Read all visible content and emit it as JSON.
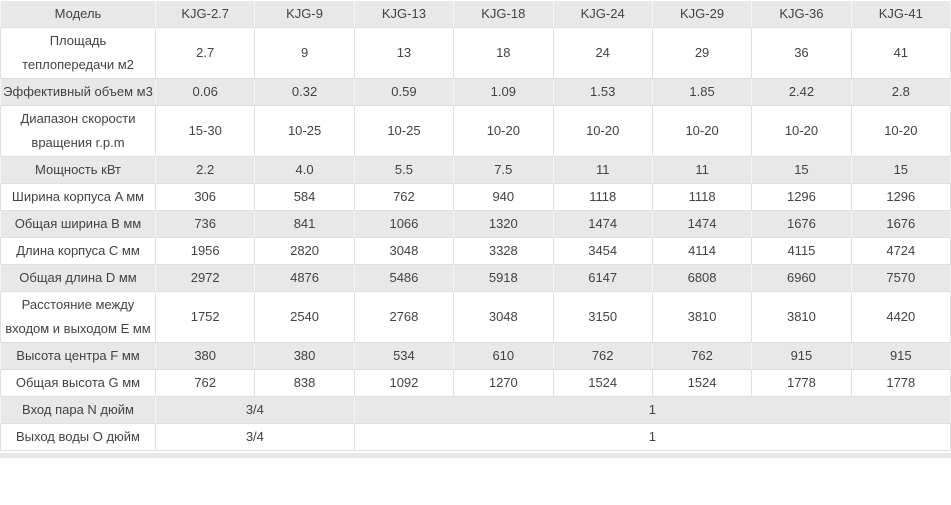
{
  "colors": {
    "row_gray": "#e8e8e8",
    "row_white": "#ffffff",
    "border": "#e0e0e0",
    "border_on_gray": "#f6f6f6",
    "text": "#434343"
  },
  "table": {
    "header": {
      "model_label": "Модель",
      "models": [
        "KJG-2.7",
        "KJG-9",
        "KJG-13",
        "KJG-18",
        "KJG-24",
        "KJG-29",
        "KJG-36",
        "KJG-41"
      ]
    },
    "rows": [
      {
        "label": "Площадь теплопередачи м2",
        "values": [
          "2.7",
          "9",
          "13",
          "18",
          "24",
          "29",
          "36",
          "41"
        ]
      },
      {
        "label": "Эффективный объем м3",
        "values": [
          "0.06",
          "0.32",
          "0.59",
          "1.09",
          "1.53",
          "1.85",
          "2.42",
          "2.8"
        ]
      },
      {
        "label": "Диапазон скорости вращения r.p.m",
        "values": [
          "15-30",
          "10-25",
          "10-25",
          "10-20",
          "10-20",
          "10-20",
          "10-20",
          "10-20"
        ]
      },
      {
        "label": "Мощность кВт",
        "values": [
          "2.2",
          "4.0",
          "5.5",
          "7.5",
          "11",
          "11",
          "15",
          "15"
        ]
      },
      {
        "label": "Ширина корпуса A мм",
        "values": [
          "306",
          "584",
          "762",
          "940",
          "1118",
          "1118",
          "1296",
          "1296"
        ]
      },
      {
        "label": "Общая ширина B мм",
        "values": [
          "736",
          "841",
          "1066",
          "1320",
          "1474",
          "1474",
          "1676",
          "1676"
        ]
      },
      {
        "label": "Длина корпуса C мм",
        "values": [
          "1956",
          "2820",
          "3048",
          "3328",
          "3454",
          "4114",
          "4115",
          "4724"
        ]
      },
      {
        "label": "Общая длина D мм",
        "values": [
          "2972",
          "4876",
          "5486",
          "5918",
          "6147",
          "6808",
          "6960",
          "7570"
        ]
      },
      {
        "label": "Расстояние между входом и выходом E мм",
        "values": [
          "1752",
          "2540",
          "2768",
          "3048",
          "3150",
          "3810",
          "3810",
          "4420"
        ]
      },
      {
        "label": "Высота центра F мм",
        "values": [
          "380",
          "380",
          "534",
          "610",
          "762",
          "762",
          "915",
          "915"
        ]
      },
      {
        "label": "Общая высота G мм",
        "values": [
          "762",
          "838",
          "1092",
          "1270",
          "1524",
          "1524",
          "1778",
          "1778"
        ]
      },
      {
        "label": "Вход пара N дюйм",
        "spans": [
          {
            "value": "3/4",
            "colspan": 2
          },
          {
            "value": "1",
            "colspan": 6
          }
        ]
      },
      {
        "label": "Выход воды O дюйм",
        "spans": [
          {
            "value": "3/4",
            "colspan": 2
          },
          {
            "value": "1",
            "colspan": 6
          }
        ]
      }
    ]
  }
}
